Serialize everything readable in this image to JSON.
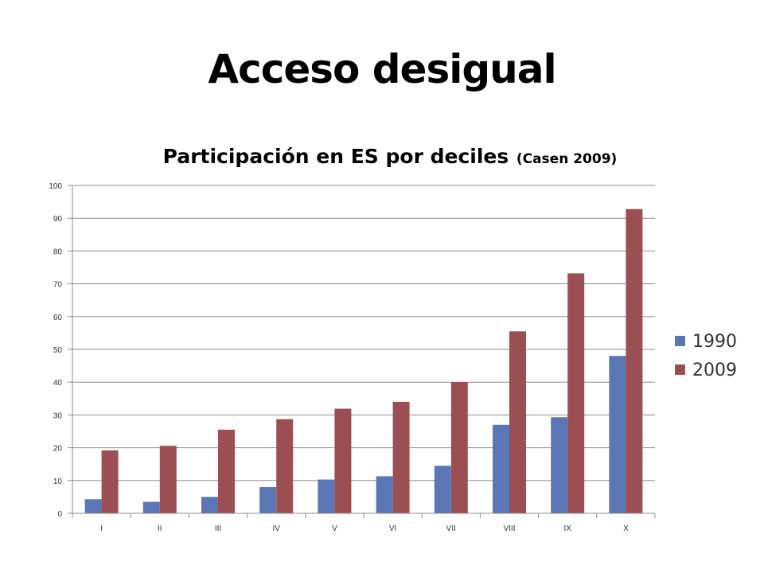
{
  "slide": {
    "title": "Acceso desigual"
  },
  "chart_data": {
    "type": "bar",
    "title": "Participación en ES por deciles",
    "subtitle": "(Casen 2009)",
    "xlabel": "",
    "ylabel": "",
    "ylim": [
      0,
      100
    ],
    "yticks": [
      0,
      10,
      20,
      30,
      40,
      50,
      60,
      70,
      80,
      90,
      100
    ],
    "grid": true,
    "legend_position": "right",
    "categories": [
      "I",
      "II",
      "III",
      "IV",
      "V",
      "VI",
      "VII",
      "VIII",
      "IX",
      "X"
    ],
    "series": [
      {
        "name": "1990",
        "color": "#5b76b5",
        "values": [
          4.3,
          3.5,
          5,
          8,
          10.3,
          11.3,
          14.5,
          27,
          29.3,
          48
        ]
      },
      {
        "name": "2009",
        "color": "#9c4f52",
        "values": [
          19.2,
          20.6,
          25.5,
          28.7,
          31.9,
          34,
          40,
          55.5,
          73.2,
          92.8
        ]
      }
    ]
  }
}
